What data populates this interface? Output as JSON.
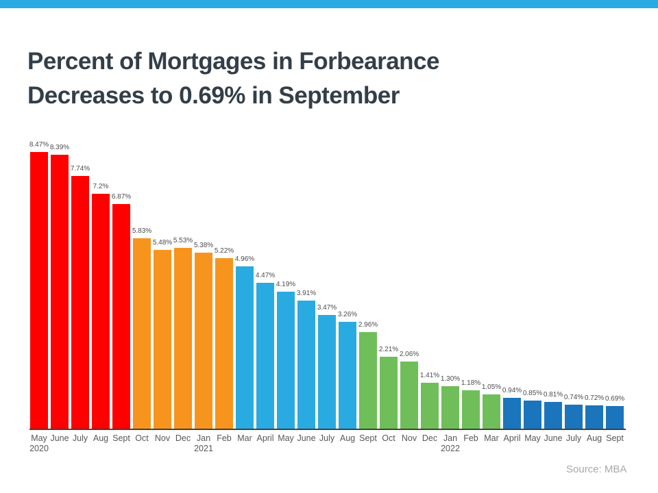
{
  "header": {
    "banner_color": "#29ABE2",
    "title_lines": [
      "Percent of Mortgages in Forbearance",
      "Decreases to 0.69% in September"
    ],
    "title_color": "#333E48"
  },
  "footer": {
    "source": "Source: MBA"
  },
  "chart_data": {
    "type": "bar",
    "title": "Percent of Mortgages in Forbearance Decreases to 0.69% in September",
    "xlabel": "",
    "ylabel": "",
    "ylim": [
      0,
      9
    ],
    "grid": false,
    "legend_position": "none",
    "y_axis_shown": false,
    "data_labels_shown": true,
    "categories": [
      "May",
      "June",
      "July",
      "Aug",
      "Sept",
      "Oct",
      "Nov",
      "Dec",
      "Jan",
      "Feb",
      "Mar",
      "April",
      "May",
      "June",
      "July",
      "Aug",
      "Sept",
      "Oct",
      "Nov",
      "Dec",
      "Jan",
      "Feb",
      "Mar",
      "April",
      "May",
      "June",
      "July",
      "Aug",
      "Sept"
    ],
    "year_markers": [
      {
        "index": 0,
        "label": "2020"
      },
      {
        "index": 8,
        "label": "2021"
      },
      {
        "index": 20,
        "label": "2022"
      }
    ],
    "values": [
      8.47,
      8.39,
      7.74,
      7.2,
      6.87,
      5.83,
      5.48,
      5.53,
      5.38,
      5.22,
      4.96,
      4.47,
      4.19,
      3.91,
      3.47,
      3.26,
      2.96,
      2.21,
      2.06,
      1.41,
      1.3,
      1.18,
      1.05,
      0.94,
      0.85,
      0.81,
      0.74,
      0.72,
      0.69
    ],
    "value_labels": [
      "8.47%",
      "8.39%",
      "7.74%",
      "7.2%",
      "6.87%",
      "5.83%",
      "5.48%",
      "5.53%",
      "5.38%",
      "5.22%",
      "4.96%",
      "4.47%",
      "4.19%",
      "3.91%",
      "3.47%",
      "3.26%",
      "2.96%",
      "2.21%",
      "2.06%",
      "1.41%",
      "1.30%",
      "1.18%",
      "1.05%",
      "0.94%",
      "0.85%",
      "0.81%",
      "0.74%",
      "0.72%",
      "0.69%"
    ],
    "bar_colors": [
      "#FF0000",
      "#FF0000",
      "#FF0000",
      "#FF0000",
      "#FF0000",
      "#F7941D",
      "#F7941D",
      "#F7941D",
      "#F7941D",
      "#F7941D",
      "#29ABE2",
      "#29ABE2",
      "#29ABE2",
      "#29ABE2",
      "#29ABE2",
      "#29ABE2",
      "#6FBE59",
      "#6FBE59",
      "#6FBE59",
      "#6FBE59",
      "#6FBE59",
      "#6FBE59",
      "#6FBE59",
      "#1B75BC",
      "#1B75BC",
      "#1B75BC",
      "#1B75BC",
      "#1B75BC",
      "#1B75BC"
    ],
    "color_groups": {
      "red": "#FF0000",
      "orange": "#F7941D",
      "light_blue": "#29ABE2",
      "green": "#6FBE59",
      "dark_blue": "#1B75BC"
    },
    "source": "Source: MBA"
  }
}
